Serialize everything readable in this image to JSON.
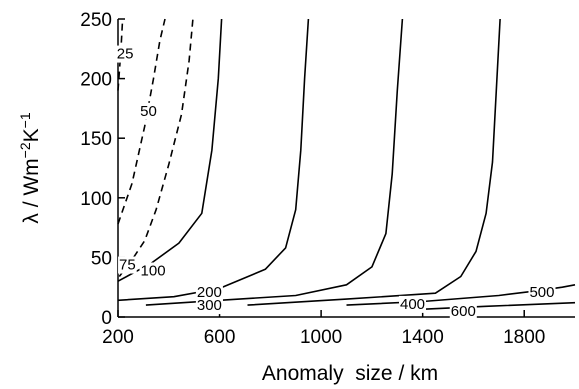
{
  "chart_data": {
    "type": "line",
    "subtype": "contour",
    "title": "",
    "xlabel": "Anomaly  size / km",
    "ylabel_parts": {
      "pre": "λ / Wm",
      "sup1": "−2",
      "mid": "K",
      "sup2": "−1"
    },
    "xlim": [
      200,
      2000
    ],
    "ylim": [
      0,
      250
    ],
    "xticks": [
      200,
      600,
      1000,
      1400,
      1800
    ],
    "yticks": [
      0,
      50,
      100,
      150,
      200,
      250
    ],
    "grid": false,
    "legend": "none",
    "series": [
      {
        "name": "25",
        "style": "dashed",
        "x": [
          200,
          212,
          218
        ],
        "y": [
          190,
          225,
          250
        ]
      },
      {
        "name": "50",
        "style": "dashed",
        "x": [
          200,
          255,
          305,
          340,
          365,
          385
        ],
        "y": [
          78,
          112,
          160,
          200,
          232,
          250
        ]
      },
      {
        "name": "75",
        "style": "dashed",
        "x": [
          205,
          255,
          305,
          350,
          400,
          450,
          480,
          495
        ],
        "y": [
          34,
          48,
          64,
          90,
          128,
          170,
          215,
          250
        ]
      },
      {
        "name": "100",
        "style": "solid",
        "x": [
          200,
          330,
          440,
          530,
          570,
          595,
          608
        ],
        "y": [
          30,
          45,
          62,
          87,
          140,
          200,
          250
        ]
      },
      {
        "name": "200",
        "style": "solid",
        "x": [
          200,
          420,
          600,
          780,
          860,
          900,
          920,
          935,
          950
        ],
        "y": [
          14,
          17,
          24,
          40,
          58,
          90,
          140,
          200,
          250
        ]
      },
      {
        "name": "300",
        "style": "solid",
        "x": [
          310,
          600,
          900,
          1100,
          1200,
          1255,
          1280,
          1300,
          1320
        ],
        "y": [
          10,
          14,
          18,
          27,
          42,
          70,
          120,
          190,
          250
        ]
      },
      {
        "name": "400",
        "style": "solid",
        "x": [
          710,
          1100,
          1450,
          1550,
          1610,
          1650,
          1675,
          1690,
          1705
        ],
        "y": [
          10,
          15,
          20,
          34,
          55,
          87,
          130,
          190,
          250
        ]
      },
      {
        "name": "500",
        "style": "solid",
        "x": [
          1100,
          1400,
          1700,
          1850,
          1950,
          2000
        ],
        "y": [
          10,
          13,
          18,
          22,
          25,
          27
        ]
      },
      {
        "name": "600",
        "style": "solid",
        "x": [
          1350,
          1650,
          2000
        ],
        "y": [
          6,
          9,
          12
        ]
      }
    ],
    "contour_labels": [
      {
        "text": "25",
        "x": 228,
        "y": 221
      },
      {
        "text": "50",
        "x": 320,
        "y": 173
      },
      {
        "text": "75",
        "x": 237,
        "y": 44
      },
      {
        "text": "100",
        "x": 338,
        "y": 39
      },
      {
        "text": "200",
        "x": 560,
        "y": 21
      },
      {
        "text": "300",
        "x": 560,
        "y": 10
      },
      {
        "text": "400",
        "x": 1360,
        "y": 11
      },
      {
        "text": "500",
        "x": 1870,
        "y": 21
      },
      {
        "text": "600",
        "x": 1560,
        "y": 5
      }
    ]
  }
}
